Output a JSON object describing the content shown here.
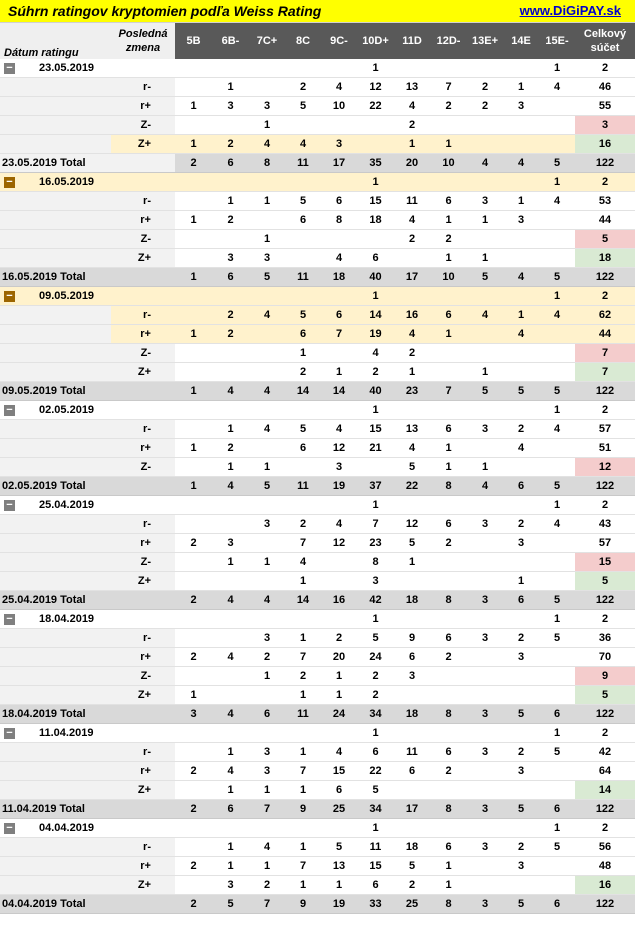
{
  "title": "Súhrn ratingov kryptomien podľa Weiss Rating",
  "link": "www.DiGiPAY.sk",
  "toggle_icon": "−",
  "headers": {
    "date": "Dátum ratingu",
    "zmena": [
      "Posledná",
      "zmena"
    ],
    "cols": [
      "5B",
      "6B-",
      "7C+",
      "8C",
      "9C-",
      "10D+",
      "11D",
      "12D-",
      "13E+",
      "14E",
      "15E-"
    ],
    "total": [
      "Celkový",
      "súčet"
    ]
  },
  "groups": [
    {
      "date": "23.05.2019",
      "hl_header": false,
      "header": [
        "",
        "",
        "",
        "",
        "",
        "1",
        "",
        "",
        "",
        "",
        "1",
        "2"
      ],
      "rows": [
        {
          "label": "r-",
          "cells": [
            "",
            "1",
            "",
            "2",
            "4",
            "12",
            "13",
            "7",
            "2",
            "1",
            "4",
            "46"
          ],
          "hl": false,
          "total_color": ""
        },
        {
          "label": "r+",
          "cells": [
            "1",
            "3",
            "3",
            "5",
            "10",
            "22",
            "4",
            "2",
            "2",
            "3",
            "",
            "55"
          ],
          "hl": false,
          "total_color": ""
        },
        {
          "label": "Z-",
          "cells": [
            "",
            "",
            "1",
            "",
            "",
            "",
            "2",
            "",
            "",
            "",
            "",
            "3"
          ],
          "hl": false,
          "total_color": "red"
        },
        {
          "label": "Z+",
          "cells": [
            "1",
            "2",
            "4",
            "4",
            "3",
            "",
            "1",
            "1",
            "",
            "",
            "",
            "16"
          ],
          "hl": true,
          "total_color": "green"
        }
      ],
      "total_label": "23.05.2019 Total",
      "total_hl": true,
      "total": [
        "2",
        "6",
        "8",
        "11",
        "17",
        "35",
        "20",
        "10",
        "4",
        "4",
        "5",
        "122"
      ]
    },
    {
      "date": "16.05.2019",
      "hl_header": true,
      "header": [
        "",
        "",
        "",
        "",
        "",
        "1",
        "",
        "",
        "",
        "",
        "1",
        "2"
      ],
      "rows": [
        {
          "label": "r-",
          "cells": [
            "",
            "1",
            "1",
            "5",
            "6",
            "15",
            "11",
            "6",
            "3",
            "1",
            "4",
            "53"
          ],
          "hl": false,
          "total_color": ""
        },
        {
          "label": "r+",
          "cells": [
            "1",
            "2",
            "",
            "6",
            "8",
            "18",
            "4",
            "1",
            "1",
            "3",
            "",
            "44"
          ],
          "hl": false,
          "total_color": ""
        },
        {
          "label": "Z-",
          "cells": [
            "",
            "",
            "1",
            "",
            "",
            "",
            "2",
            "2",
            "",
            "",
            "",
            "5"
          ],
          "hl": false,
          "total_color": "red"
        },
        {
          "label": "Z+",
          "cells": [
            "",
            "3",
            "3",
            "",
            "4",
            "6",
            "",
            "1",
            "1",
            "",
            "",
            "18"
          ],
          "hl": false,
          "total_color": "green"
        }
      ],
      "total_label": "16.05.2019 Total",
      "total_hl": false,
      "total": [
        "1",
        "6",
        "5",
        "11",
        "18",
        "40",
        "17",
        "10",
        "5",
        "4",
        "5",
        "122"
      ]
    },
    {
      "date": "09.05.2019",
      "hl_header": true,
      "header": [
        "",
        "",
        "",
        "",
        "",
        "1",
        "",
        "",
        "",
        "",
        "1",
        "2"
      ],
      "rows": [
        {
          "label": "r-",
          "cells": [
            "",
            "2",
            "4",
            "5",
            "6",
            "14",
            "16",
            "6",
            "4",
            "1",
            "4",
            "62"
          ],
          "hl": true,
          "total_color": ""
        },
        {
          "label": "r+",
          "cells": [
            "1",
            "2",
            "",
            "6",
            "7",
            "19",
            "4",
            "1",
            "",
            "4",
            "",
            "44"
          ],
          "hl": true,
          "total_color": ""
        },
        {
          "label": "Z-",
          "cells": [
            "",
            "",
            "",
            "1",
            "",
            "4",
            "2",
            "",
            "",
            "",
            "",
            "7"
          ],
          "hl": false,
          "total_color": "red"
        },
        {
          "label": "Z+",
          "cells": [
            "",
            "",
            "",
            "2",
            "1",
            "2",
            "1",
            "",
            "1",
            "",
            "",
            "7"
          ],
          "hl": false,
          "total_color": "green"
        }
      ],
      "total_label": "09.05.2019 Total",
      "total_hl": false,
      "total": [
        "1",
        "4",
        "4",
        "14",
        "14",
        "40",
        "23",
        "7",
        "5",
        "5",
        "5",
        "122"
      ]
    },
    {
      "date": "02.05.2019",
      "hl_header": false,
      "header": [
        "",
        "",
        "",
        "",
        "",
        "1",
        "",
        "",
        "",
        "",
        "1",
        "2"
      ],
      "rows": [
        {
          "label": "r-",
          "cells": [
            "",
            "1",
            "4",
            "5",
            "4",
            "15",
            "13",
            "6",
            "3",
            "2",
            "4",
            "57"
          ],
          "hl": false,
          "total_color": ""
        },
        {
          "label": "r+",
          "cells": [
            "1",
            "2",
            "",
            "6",
            "12",
            "21",
            "4",
            "1",
            "",
            "4",
            "",
            "51"
          ],
          "hl": false,
          "total_color": ""
        },
        {
          "label": "Z-",
          "cells": [
            "",
            "1",
            "1",
            "",
            "3",
            "",
            "5",
            "1",
            "1",
            "",
            "",
            "12"
          ],
          "hl": false,
          "total_color": "red"
        }
      ],
      "total_label": "02.05.2019 Total",
      "total_hl": false,
      "total": [
        "1",
        "4",
        "5",
        "11",
        "19",
        "37",
        "22",
        "8",
        "4",
        "6",
        "5",
        "122"
      ]
    },
    {
      "date": "25.04.2019",
      "hl_header": false,
      "header": [
        "",
        "",
        "",
        "",
        "",
        "1",
        "",
        "",
        "",
        "",
        "1",
        "2"
      ],
      "rows": [
        {
          "label": "r-",
          "cells": [
            "",
            "",
            "3",
            "2",
            "4",
            "7",
            "12",
            "6",
            "3",
            "2",
            "4",
            "43"
          ],
          "hl": false,
          "total_color": ""
        },
        {
          "label": "r+",
          "cells": [
            "2",
            "3",
            "",
            "7",
            "12",
            "23",
            "5",
            "2",
            "",
            "3",
            "",
            "57"
          ],
          "hl": false,
          "total_color": ""
        },
        {
          "label": "Z-",
          "cells": [
            "",
            "1",
            "1",
            "4",
            "",
            "8",
            "1",
            "",
            "",
            "",
            "",
            "15"
          ],
          "hl": false,
          "total_color": "red"
        },
        {
          "label": "Z+",
          "cells": [
            "",
            "",
            "",
            "1",
            "",
            "3",
            "",
            "",
            "",
            "1",
            "",
            "5"
          ],
          "hl": false,
          "total_color": "green"
        }
      ],
      "total_label": "25.04.2019 Total",
      "total_hl": false,
      "total": [
        "2",
        "4",
        "4",
        "14",
        "16",
        "42",
        "18",
        "8",
        "3",
        "6",
        "5",
        "122"
      ]
    },
    {
      "date": "18.04.2019",
      "hl_header": false,
      "header": [
        "",
        "",
        "",
        "",
        "",
        "1",
        "",
        "",
        "",
        "",
        "1",
        "2"
      ],
      "rows": [
        {
          "label": "r-",
          "cells": [
            "",
            "",
            "3",
            "1",
            "2",
            "5",
            "9",
            "6",
            "3",
            "2",
            "5",
            "36"
          ],
          "hl": false,
          "total_color": ""
        },
        {
          "label": "r+",
          "cells": [
            "2",
            "4",
            "2",
            "7",
            "20",
            "24",
            "6",
            "2",
            "",
            "3",
            "",
            "70"
          ],
          "hl": false,
          "total_color": ""
        },
        {
          "label": "Z-",
          "cells": [
            "",
            "",
            "1",
            "2",
            "1",
            "2",
            "3",
            "",
            "",
            "",
            "",
            "9"
          ],
          "hl": false,
          "total_color": "red"
        },
        {
          "label": "Z+",
          "cells": [
            "1",
            "",
            "",
            "1",
            "1",
            "2",
            "",
            "",
            "",
            "",
            "",
            "5"
          ],
          "hl": false,
          "total_color": "green"
        }
      ],
      "total_label": "18.04.2019 Total",
      "total_hl": false,
      "total": [
        "3",
        "4",
        "6",
        "11",
        "24",
        "34",
        "18",
        "8",
        "3",
        "5",
        "6",
        "122"
      ]
    },
    {
      "date": "11.04.2019",
      "hl_header": false,
      "header": [
        "",
        "",
        "",
        "",
        "",
        "1",
        "",
        "",
        "",
        "",
        "1",
        "2"
      ],
      "rows": [
        {
          "label": "r-",
          "cells": [
            "",
            "1",
            "3",
            "1",
            "4",
            "6",
            "11",
            "6",
            "3",
            "2",
            "5",
            "42"
          ],
          "hl": false,
          "total_color": ""
        },
        {
          "label": "r+",
          "cells": [
            "2",
            "4",
            "3",
            "7",
            "15",
            "22",
            "6",
            "2",
            "",
            "3",
            "",
            "64"
          ],
          "hl": false,
          "total_color": ""
        },
        {
          "label": "Z+",
          "cells": [
            "",
            "1",
            "1",
            "1",
            "6",
            "5",
            "",
            "",
            "",
            "",
            "",
            "14"
          ],
          "hl": false,
          "total_color": "green"
        }
      ],
      "total_label": "11.04.2019 Total",
      "total_hl": false,
      "total": [
        "2",
        "6",
        "7",
        "9",
        "25",
        "34",
        "17",
        "8",
        "3",
        "5",
        "6",
        "122"
      ]
    },
    {
      "date": "04.04.2019",
      "hl_header": false,
      "header": [
        "",
        "",
        "",
        "",
        "",
        "1",
        "",
        "",
        "",
        "",
        "1",
        "2"
      ],
      "rows": [
        {
          "label": "r-",
          "cells": [
            "",
            "1",
            "4",
            "1",
            "5",
            "11",
            "18",
            "6",
            "3",
            "2",
            "5",
            "56"
          ],
          "hl": false,
          "total_color": ""
        },
        {
          "label": "r+",
          "cells": [
            "2",
            "1",
            "1",
            "7",
            "13",
            "15",
            "5",
            "1",
            "",
            "3",
            "",
            "48"
          ],
          "hl": false,
          "total_color": ""
        },
        {
          "label": "Z+",
          "cells": [
            "",
            "3",
            "2",
            "1",
            "1",
            "6",
            "2",
            "1",
            "",
            "",
            "",
            "16"
          ],
          "hl": false,
          "total_color": "green"
        }
      ],
      "total_label": "04.04.2019 Total",
      "total_hl": false,
      "total": [
        "2",
        "5",
        "7",
        "9",
        "19",
        "33",
        "25",
        "8",
        "3",
        "5",
        "6",
        "122"
      ]
    }
  ]
}
